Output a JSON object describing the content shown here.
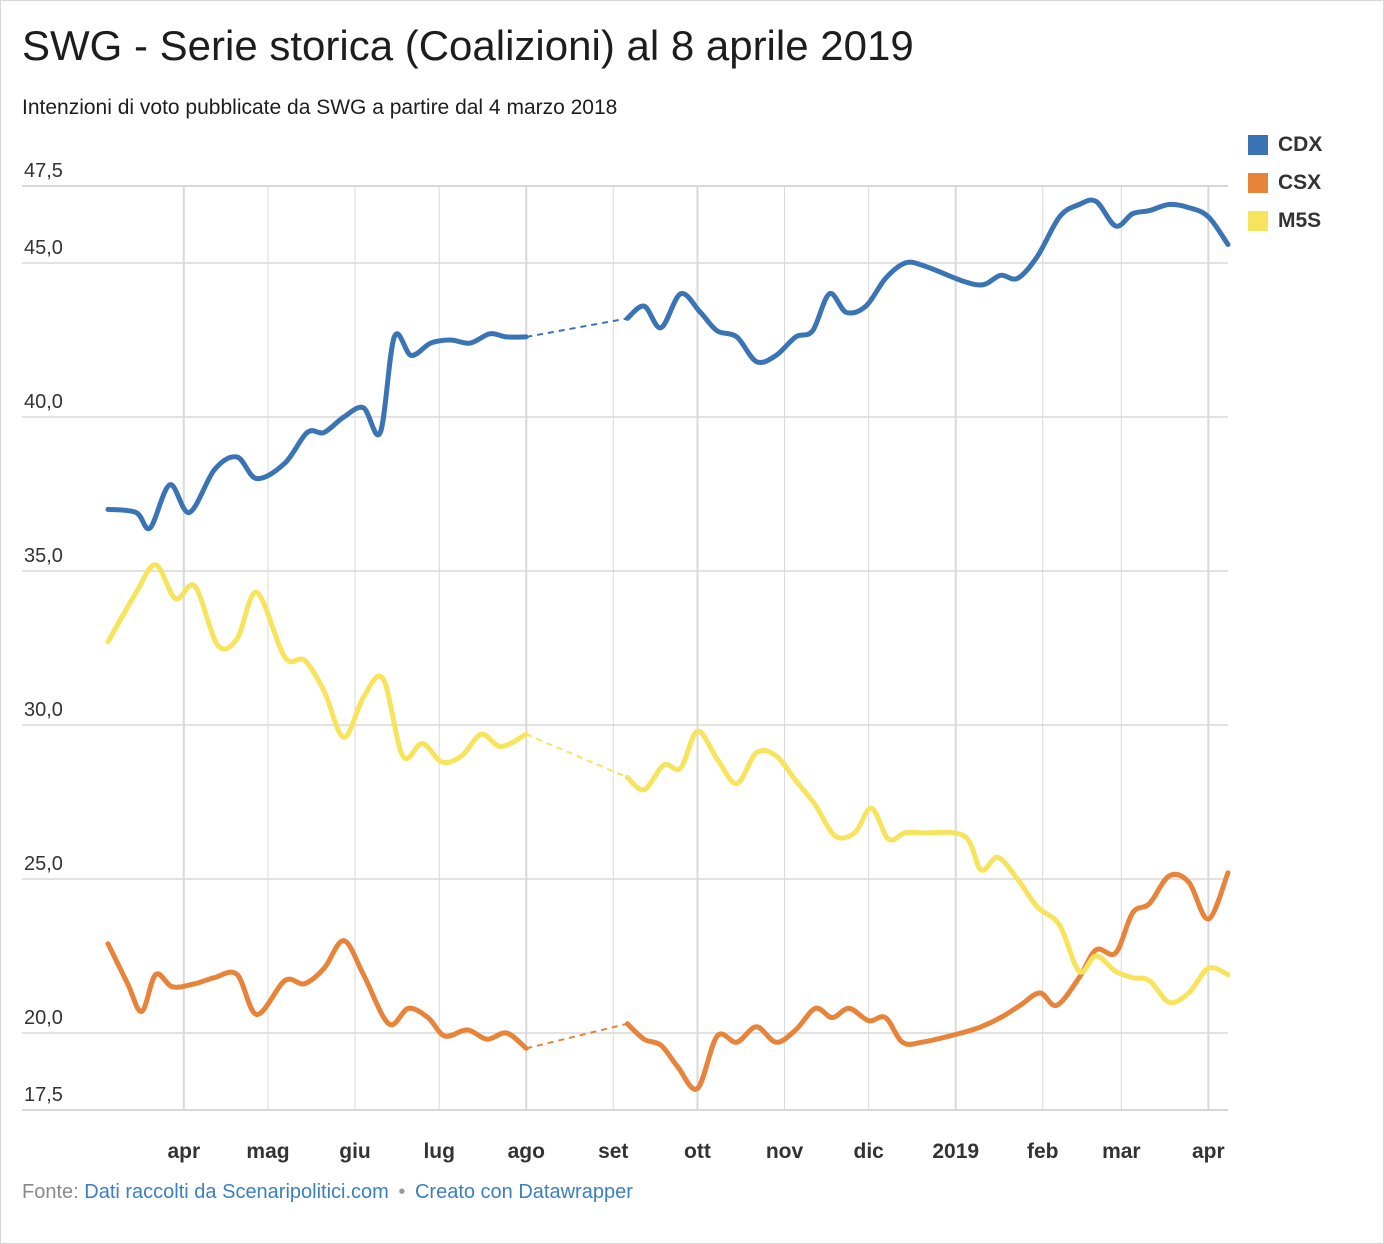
{
  "title": "SWG - Serie storica (Coalizioni) al 8 aprile 2019",
  "subtitle": "Intenzioni di voto pubblicate da SWG a partire dal 4 marzo 2018",
  "footer": {
    "prefix": "Fonte:",
    "source_link": "Dati raccolti da Scenaripolitici.com",
    "separator": "•",
    "credit_link": "Creato con Datawrapper"
  },
  "chart_data": {
    "type": "line",
    "x_ticks": [
      "apr",
      "mag",
      "giu",
      "lug",
      "ago",
      "set",
      "ott",
      "nov",
      "dic",
      "2019",
      "feb",
      "mar",
      "apr"
    ],
    "y_ticks": [
      "47,5",
      "45,0",
      "40,0",
      "35,0",
      "30,0",
      "25,0",
      "20,0",
      "17,5"
    ],
    "ylim": [
      17.5,
      47.5
    ],
    "grid": true,
    "legend_position": "top-right",
    "gap_segment": {
      "from": "2018-08-01",
      "to": "2018-09-06",
      "style": "dashed"
    },
    "series": [
      {
        "name": "CDX",
        "color": "#3a74b4",
        "points": [
          [
            "2018-03-05",
            37.0
          ],
          [
            "2018-03-15",
            36.9
          ],
          [
            "2018-03-20",
            36.4
          ],
          [
            "2018-03-27",
            37.8
          ],
          [
            "2018-04-03",
            36.9
          ],
          [
            "2018-04-12",
            38.3
          ],
          [
            "2018-04-20",
            38.7
          ],
          [
            "2018-04-27",
            38.0
          ],
          [
            "2018-05-07",
            38.5
          ],
          [
            "2018-05-15",
            39.5
          ],
          [
            "2018-05-21",
            39.5
          ],
          [
            "2018-05-28",
            40.0
          ],
          [
            "2018-06-04",
            40.3
          ],
          [
            "2018-06-10",
            39.5
          ],
          [
            "2018-06-15",
            42.6
          ],
          [
            "2018-06-21",
            42.0
          ],
          [
            "2018-06-28",
            42.4
          ],
          [
            "2018-07-05",
            42.5
          ],
          [
            "2018-07-12",
            42.4
          ],
          [
            "2018-07-19",
            42.7
          ],
          [
            "2018-07-25",
            42.6
          ],
          [
            "2018-08-01",
            42.6
          ],
          [
            "2018-09-06",
            43.2
          ],
          [
            "2018-09-12",
            43.6
          ],
          [
            "2018-09-18",
            42.9
          ],
          [
            "2018-09-25",
            44.0
          ],
          [
            "2018-10-02",
            43.4
          ],
          [
            "2018-10-08",
            42.8
          ],
          [
            "2018-10-15",
            42.6
          ],
          [
            "2018-10-22",
            41.8
          ],
          [
            "2018-10-29",
            42.0
          ],
          [
            "2018-11-05",
            42.6
          ],
          [
            "2018-11-11",
            42.8
          ],
          [
            "2018-11-17",
            44.0
          ],
          [
            "2018-11-23",
            43.4
          ],
          [
            "2018-11-30",
            43.6
          ],
          [
            "2018-12-07",
            44.5
          ],
          [
            "2018-12-14",
            45.0
          ],
          [
            "2018-12-21",
            44.9
          ],
          [
            "2019-01-04",
            44.4
          ],
          [
            "2019-01-11",
            44.3
          ],
          [
            "2019-01-17",
            44.6
          ],
          [
            "2019-01-23",
            44.5
          ],
          [
            "2019-01-30",
            45.2
          ],
          [
            "2019-02-07",
            46.5
          ],
          [
            "2019-02-14",
            46.9
          ],
          [
            "2019-02-20",
            47.0
          ],
          [
            "2019-02-27",
            46.2
          ],
          [
            "2019-03-05",
            46.6
          ],
          [
            "2019-03-11",
            46.7
          ],
          [
            "2019-03-18",
            46.9
          ],
          [
            "2019-03-25",
            46.8
          ],
          [
            "2019-04-01",
            46.5
          ],
          [
            "2019-04-08",
            45.6
          ]
        ]
      },
      {
        "name": "CSX",
        "color": "#e8833a",
        "points": [
          [
            "2018-03-05",
            22.9
          ],
          [
            "2018-03-12",
            21.6
          ],
          [
            "2018-03-17",
            20.7
          ],
          [
            "2018-03-22",
            21.9
          ],
          [
            "2018-03-28",
            21.5
          ],
          [
            "2018-04-05",
            21.6
          ],
          [
            "2018-04-12",
            21.8
          ],
          [
            "2018-04-20",
            21.9
          ],
          [
            "2018-04-27",
            20.6
          ],
          [
            "2018-05-07",
            21.7
          ],
          [
            "2018-05-14",
            21.6
          ],
          [
            "2018-05-21",
            22.1
          ],
          [
            "2018-05-28",
            23.0
          ],
          [
            "2018-06-04",
            21.9
          ],
          [
            "2018-06-13",
            20.3
          ],
          [
            "2018-06-20",
            20.8
          ],
          [
            "2018-06-27",
            20.5
          ],
          [
            "2018-07-03",
            19.9
          ],
          [
            "2018-07-11",
            20.1
          ],
          [
            "2018-07-18",
            19.8
          ],
          [
            "2018-07-25",
            20.0
          ],
          [
            "2018-08-01",
            19.5
          ],
          [
            "2018-09-06",
            20.3
          ],
          [
            "2018-09-12",
            19.8
          ],
          [
            "2018-09-18",
            19.6
          ],
          [
            "2018-09-24",
            18.9
          ],
          [
            "2018-10-01",
            18.2
          ],
          [
            "2018-10-08",
            19.9
          ],
          [
            "2018-10-15",
            19.7
          ],
          [
            "2018-10-22",
            20.2
          ],
          [
            "2018-10-29",
            19.7
          ],
          [
            "2018-11-05",
            20.1
          ],
          [
            "2018-11-12",
            20.8
          ],
          [
            "2018-11-18",
            20.5
          ],
          [
            "2018-11-24",
            20.8
          ],
          [
            "2018-12-01",
            20.4
          ],
          [
            "2018-12-07",
            20.5
          ],
          [
            "2018-12-13",
            19.7
          ],
          [
            "2018-12-20",
            19.7
          ],
          [
            "2019-01-03",
            20.0
          ],
          [
            "2019-01-10",
            20.2
          ],
          [
            "2019-01-17",
            20.5
          ],
          [
            "2019-01-24",
            20.9
          ],
          [
            "2019-01-31",
            21.3
          ],
          [
            "2019-02-06",
            20.9
          ],
          [
            "2019-02-14",
            21.8
          ],
          [
            "2019-02-20",
            22.7
          ],
          [
            "2019-02-27",
            22.6
          ],
          [
            "2019-03-05",
            23.9
          ],
          [
            "2019-03-11",
            24.2
          ],
          [
            "2019-03-18",
            25.1
          ],
          [
            "2019-03-25",
            24.9
          ],
          [
            "2019-04-01",
            23.7
          ],
          [
            "2019-04-08",
            25.2
          ]
        ]
      },
      {
        "name": "M5S",
        "color": "#f8e45c",
        "points": [
          [
            "2018-03-05",
            32.7
          ],
          [
            "2018-03-15",
            34.3
          ],
          [
            "2018-03-22",
            35.2
          ],
          [
            "2018-03-29",
            34.1
          ],
          [
            "2018-04-05",
            34.5
          ],
          [
            "2018-04-13",
            32.6
          ],
          [
            "2018-04-20",
            32.8
          ],
          [
            "2018-04-27",
            34.3
          ],
          [
            "2018-05-07",
            32.2
          ],
          [
            "2018-05-14",
            32.1
          ],
          [
            "2018-05-21",
            31.1
          ],
          [
            "2018-05-28",
            29.6
          ],
          [
            "2018-06-04",
            30.9
          ],
          [
            "2018-06-11",
            31.5
          ],
          [
            "2018-06-18",
            29.0
          ],
          [
            "2018-06-25",
            29.4
          ],
          [
            "2018-07-02",
            28.8
          ],
          [
            "2018-07-09",
            29.0
          ],
          [
            "2018-07-16",
            29.7
          ],
          [
            "2018-07-23",
            29.3
          ],
          [
            "2018-08-01",
            29.7
          ],
          [
            "2018-09-06",
            28.3
          ],
          [
            "2018-09-12",
            27.9
          ],
          [
            "2018-09-19",
            28.7
          ],
          [
            "2018-09-25",
            28.6
          ],
          [
            "2018-10-01",
            29.8
          ],
          [
            "2018-10-08",
            28.9
          ],
          [
            "2018-10-15",
            28.1
          ],
          [
            "2018-10-22",
            29.1
          ],
          [
            "2018-10-29",
            29.0
          ],
          [
            "2018-11-05",
            28.2
          ],
          [
            "2018-11-12",
            27.4
          ],
          [
            "2018-11-19",
            26.4
          ],
          [
            "2018-11-26",
            26.5
          ],
          [
            "2018-12-02",
            27.3
          ],
          [
            "2018-12-08",
            26.3
          ],
          [
            "2018-12-14",
            26.5
          ],
          [
            "2018-12-20",
            26.5
          ],
          [
            "2019-01-04",
            26.4
          ],
          [
            "2019-01-10",
            25.3
          ],
          [
            "2019-01-16",
            25.7
          ],
          [
            "2019-01-23",
            25.0
          ],
          [
            "2019-01-30",
            24.1
          ],
          [
            "2019-02-07",
            23.5
          ],
          [
            "2019-02-14",
            22.0
          ],
          [
            "2019-02-20",
            22.5
          ],
          [
            "2019-02-27",
            22.0
          ],
          [
            "2019-03-05",
            21.8
          ],
          [
            "2019-03-11",
            21.7
          ],
          [
            "2019-03-18",
            21.0
          ],
          [
            "2019-03-25",
            21.3
          ],
          [
            "2019-04-01",
            22.1
          ],
          [
            "2019-04-08",
            21.9
          ]
        ]
      }
    ]
  }
}
